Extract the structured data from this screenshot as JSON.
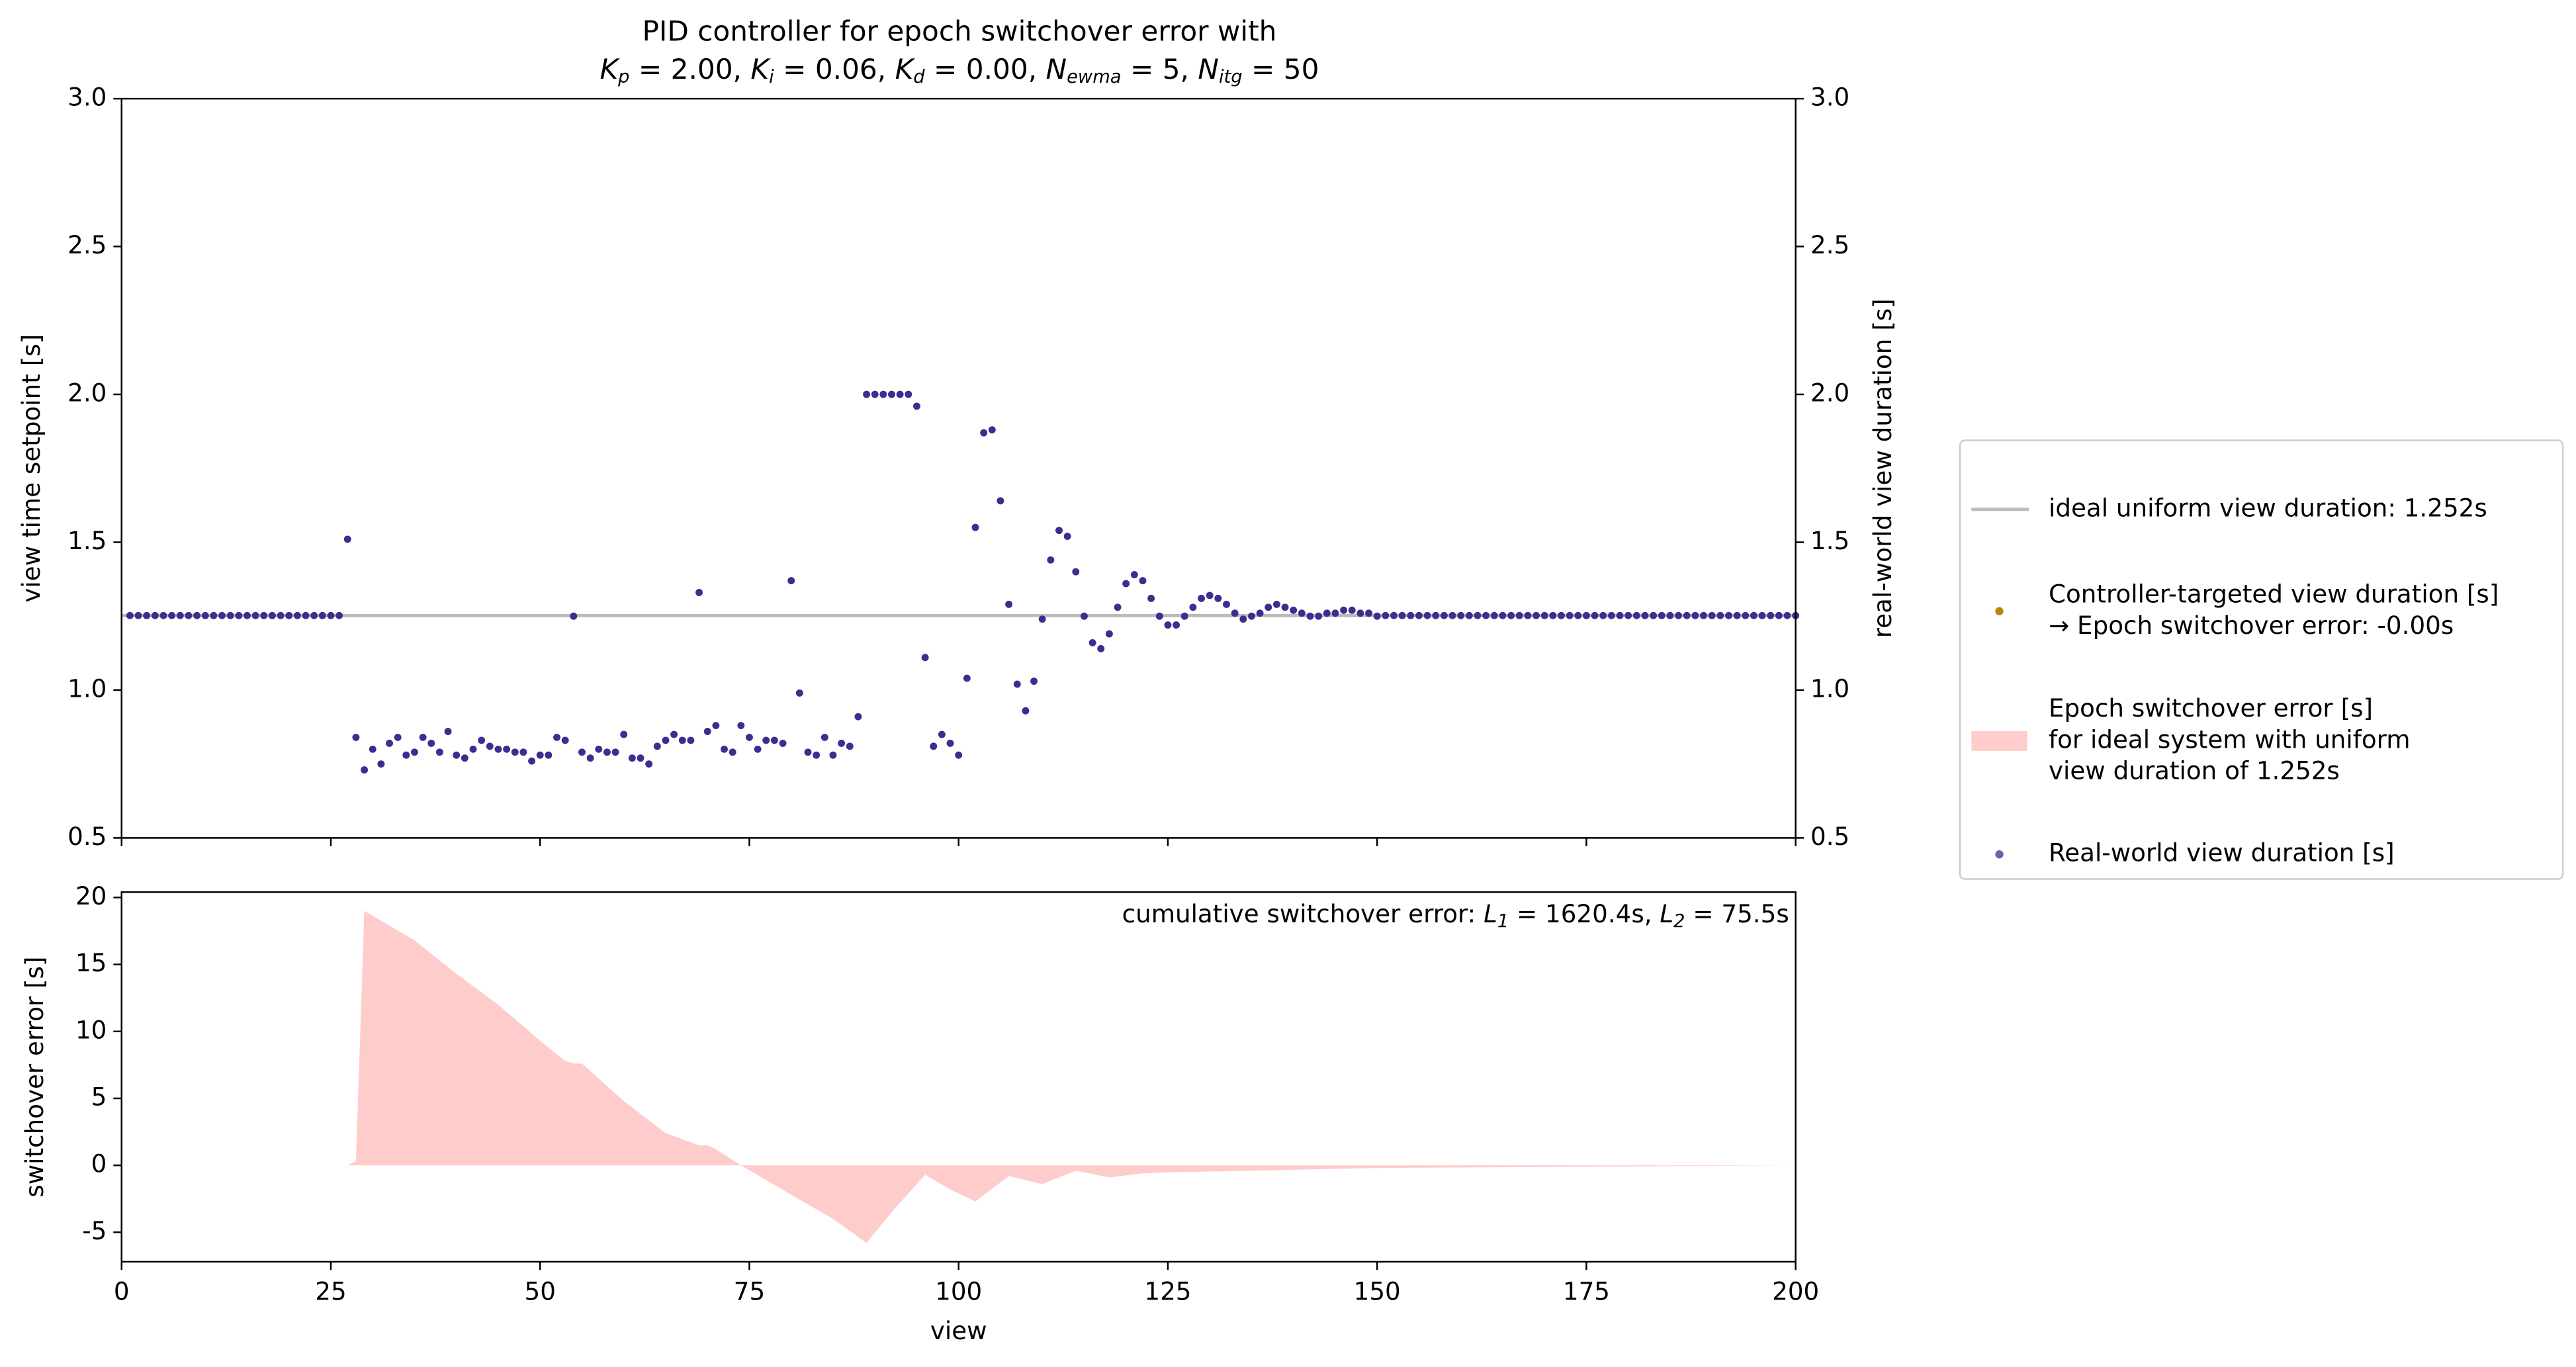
{
  "chart_data": [
    {
      "type": "scatter",
      "title": "PID controller for epoch switchover error with",
      "subtitle_parts": [
        [
          "K",
          "p",
          " = 2.00, "
        ],
        [
          "K",
          "i",
          " = 0.06, "
        ],
        [
          "K",
          "d",
          " = 0.00, "
        ],
        [
          "N",
          "ewma",
          " = 5, "
        ],
        [
          "N",
          "itg",
          " = 50"
        ]
      ],
      "x": [
        1,
        2,
        3,
        4,
        5,
        6,
        7,
        8,
        9,
        10,
        11,
        12,
        13,
        14,
        15,
        16,
        17,
        18,
        19,
        20,
        21,
        22,
        23,
        24,
        25,
        26,
        27,
        28,
        29,
        30,
        31,
        32,
        33,
        34,
        35,
        36,
        37,
        38,
        39,
        40,
        41,
        42,
        43,
        44,
        45,
        46,
        47,
        48,
        49,
        50,
        51,
        52,
        53,
        54,
        55,
        56,
        57,
        58,
        59,
        60,
        61,
        62,
        63,
        64,
        65,
        66,
        67,
        68,
        69,
        70,
        71,
        72,
        73,
        74,
        75,
        76,
        77,
        78,
        79,
        80,
        81,
        82,
        83,
        84,
        85,
        86,
        87,
        88,
        89,
        90,
        91,
        92,
        93,
        94,
        95,
        96,
        97,
        98,
        99,
        100,
        101,
        102,
        103,
        104,
        105,
        106,
        107,
        108,
        109,
        110,
        111,
        112,
        113,
        114,
        115,
        116,
        117,
        118,
        119,
        120,
        121,
        122,
        123,
        124,
        125,
        126,
        127,
        128,
        129,
        130,
        131,
        132,
        133,
        134,
        135,
        136,
        137,
        138,
        139,
        140,
        141,
        142,
        143,
        144,
        145,
        146,
        147,
        148,
        149,
        150,
        151,
        152,
        153,
        154,
        155,
        156,
        157,
        158,
        159,
        160,
        161,
        162,
        163,
        164,
        165,
        166,
        167,
        168,
        169,
        170,
        171,
        172,
        173,
        174,
        175,
        176,
        177,
        178,
        179,
        180,
        181,
        182,
        183,
        184,
        185,
        186,
        187,
        188,
        189,
        190,
        191,
        192,
        193,
        194,
        195,
        196,
        197,
        198,
        199,
        200
      ],
      "series": [
        {
          "name": "Real-world view duration [s]",
          "color": "#3d2d90",
          "values": [
            1.252,
            1.252,
            1.252,
            1.252,
            1.252,
            1.252,
            1.252,
            1.252,
            1.252,
            1.252,
            1.252,
            1.252,
            1.252,
            1.252,
            1.252,
            1.252,
            1.252,
            1.252,
            1.252,
            1.252,
            1.252,
            1.252,
            1.252,
            1.252,
            1.252,
            1.252,
            1.51,
            0.84,
            0.73,
            0.8,
            0.75,
            0.82,
            0.84,
            0.78,
            0.79,
            0.84,
            0.82,
            0.79,
            0.86,
            0.78,
            0.77,
            0.8,
            0.83,
            0.81,
            0.8,
            0.8,
            0.79,
            0.79,
            0.76,
            0.78,
            0.78,
            0.84,
            0.83,
            1.25,
            0.79,
            0.77,
            0.8,
            0.79,
            0.79,
            0.85,
            0.77,
            0.77,
            0.75,
            0.81,
            0.83,
            0.85,
            0.83,
            0.83,
            1.33,
            0.86,
            0.88,
            0.8,
            0.79,
            0.88,
            0.84,
            0.8,
            0.83,
            0.83,
            0.82,
            1.37,
            0.99,
            0.79,
            0.78,
            0.84,
            0.78,
            0.82,
            0.81,
            0.91,
            2.0,
            2.0,
            2.0,
            2.0,
            2.0,
            2.0,
            1.96,
            1.11,
            0.81,
            0.85,
            0.82,
            0.78,
            1.04,
            1.55,
            1.87,
            1.88,
            1.64,
            1.29,
            1.02,
            0.93,
            1.03,
            1.24,
            1.44,
            1.54,
            1.52,
            1.4,
            1.25,
            1.16,
            1.14,
            1.19,
            1.28,
            1.36,
            1.39,
            1.37,
            1.31,
            1.25,
            1.22,
            1.22,
            1.25,
            1.28,
            1.31,
            1.32,
            1.31,
            1.29,
            1.26,
            1.24,
            1.25,
            1.26,
            1.28,
            1.29,
            1.28,
            1.27,
            1.26,
            1.25,
            1.25,
            1.26,
            1.26,
            1.27,
            1.27,
            1.26,
            1.26,
            1.25,
            1.252,
            1.252,
            1.252,
            1.252,
            1.252,
            1.252,
            1.252,
            1.252,
            1.252,
            1.252,
            1.252,
            1.252,
            1.252,
            1.252,
            1.252,
            1.252,
            1.252,
            1.252,
            1.252,
            1.252,
            1.252,
            1.252,
            1.252,
            1.252,
            1.252,
            1.252,
            1.252,
            1.252,
            1.252,
            1.252,
            1.252,
            1.252,
            1.252,
            1.252,
            1.252,
            1.252,
            1.252,
            1.252,
            1.252,
            1.252,
            1.252,
            1.252,
            1.252,
            1.252,
            1.252,
            1.252,
            1.252,
            1.252,
            1.252,
            1.252
          ]
        }
      ],
      "xlim": [
        0,
        200
      ],
      "ylim": [
        0.5,
        3.0
      ],
      "yticks": [
        0.5,
        {
          "value": 1,
          "label": "1.0"
        },
        1.5,
        {
          "value": 2,
          "label": "2.0"
        },
        2.5,
        {
          "value": 3,
          "label": "3.0"
        }
      ],
      "y2lim": [
        0.5,
        3.0
      ],
      "y2ticks": [
        0.5,
        {
          "value": 1,
          "label": "1.0"
        },
        1.5,
        {
          "value": 2,
          "label": "2.0"
        },
        2.5,
        {
          "value": 3,
          "label": "3.0"
        }
      ],
      "ylabel": "view time setpoint [s]",
      "ylabel_color": "#b8860b",
      "y2label": "real-world view duration [s]",
      "y2label_color": "#0000ff",
      "reference_line": {
        "value": 1.252,
        "color": "#bbbbbb"
      },
      "legend_items": [
        {
          "kind": "line",
          "color": "#bbbbbb",
          "lines": [
            "ideal uniform view duration: 1.252s"
          ]
        },
        {
          "kind": "dot",
          "color": "#b8860b",
          "lines": [
            "Controller-targeted view duration [s]",
            "→ Epoch switchover error: -0.00s"
          ]
        },
        {
          "kind": "patch",
          "color": "#ffcccc",
          "lines": [
            "Epoch switchover error [s]",
            "for ideal system with uniform",
            "view duration of 1.252s"
          ]
        }
      ]
    },
    {
      "type": "area",
      "x": [
        0,
        27,
        28,
        29,
        35,
        40,
        45,
        50,
        53,
        54,
        55,
        60,
        65,
        69,
        70,
        71,
        74,
        80,
        85,
        89,
        92,
        96,
        99,
        102,
        106,
        110,
        114,
        118,
        122,
        126,
        135,
        150,
        175,
        200
      ],
      "values": [
        0,
        0,
        0.3,
        19,
        16.8,
        14.3,
        12.0,
        9.3,
        7.8,
        7.6,
        7.6,
        4.8,
        2.4,
        1.5,
        1.5,
        1.2,
        0,
        -2.2,
        -4,
        -5.8,
        -3.5,
        -0.7,
        -1.8,
        -2.7,
        -0.8,
        -1.4,
        -0.4,
        -0.9,
        -0.6,
        -0.5,
        -0.4,
        -0.2,
        -0.1,
        0
      ],
      "color": "#ffcccc",
      "xlim": [
        0,
        200
      ],
      "xticks": [
        0,
        25,
        50,
        75,
        100,
        125,
        150,
        175,
        200
      ],
      "ylim": [
        -7.2,
        20.4
      ],
      "yticks": [
        -5,
        0,
        5,
        10,
        15,
        20
      ],
      "xlabel": "view",
      "ylabel": "switchover error [s]",
      "label_color": "#8b0000",
      "annotation_prefix": "cumulative switchover error: ",
      "annotation_parts": [
        [
          "L",
          "1",
          " = 1620.4s, "
        ],
        [
          "L",
          "2",
          " = 75.5s"
        ]
      ]
    }
  ]
}
